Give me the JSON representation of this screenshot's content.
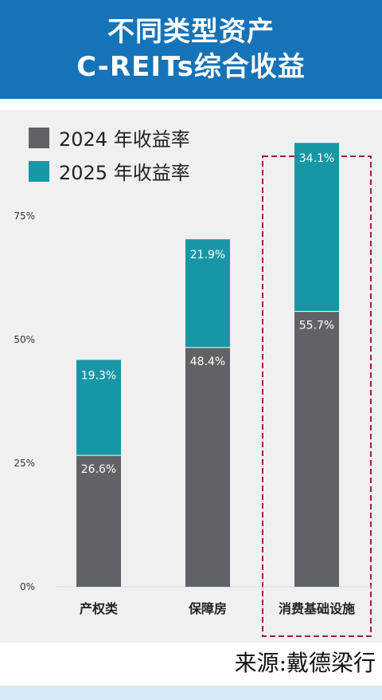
{
  "header": {
    "title_line1": "不同类型资产",
    "title_line2": "C-REITs综合收益"
  },
  "source": "来源:戴德梁行",
  "colors": {
    "header_bg": "#1673b8",
    "series_2024": "#5f6368",
    "series_2025": "#1797a6",
    "highlight_border": "#a3194b"
  },
  "chart_data": {
    "type": "bar",
    "stacked": true,
    "categories": [
      "产权类",
      "保障房",
      "消费基础设施"
    ],
    "series": [
      {
        "name": "2024 年收益率",
        "values": [
          26.6,
          48.4,
          55.7
        ],
        "labels": [
          "26.6%",
          "48.4%",
          "55.7%"
        ]
      },
      {
        "name": "2025 年收益率",
        "values": [
          19.3,
          21.9,
          34.1
        ],
        "labels": [
          "19.3%",
          "21.9%",
          "34.1%"
        ]
      }
    ],
    "yticks": [
      0,
      25,
      50,
      75
    ],
    "ytick_labels": [
      "0%",
      "25%",
      "50%",
      "75%"
    ],
    "ylim": [
      0,
      100
    ],
    "legend_position": "top-left",
    "highlighted_category": "消费基础设施"
  }
}
